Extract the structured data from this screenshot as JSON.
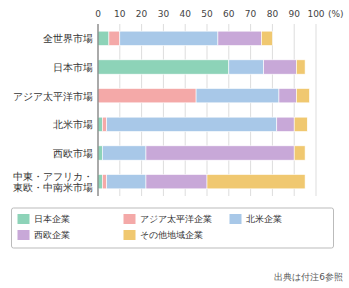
{
  "chart_data": {
    "type": "bar",
    "orientation": "horizontal",
    "stacked": true,
    "categories": [
      "全世界市場",
      "日本市場",
      "アジア太平洋市場",
      "北米市場",
      "西欧市場",
      "中東・アフリカ・\n東欧・中南米市場"
    ],
    "series": [
      {
        "name": "日本企業",
        "color": "#8dd3b8",
        "values": [
          5,
          60,
          0,
          2,
          2,
          2
        ]
      },
      {
        "name": "アジア太平洋企業",
        "color": "#f4a9a8",
        "values": [
          5,
          0,
          45,
          2,
          0,
          2
        ]
      },
      {
        "name": "北米企業",
        "color": "#a8c8e8",
        "values": [
          45,
          16,
          38,
          78,
          20,
          18
        ]
      },
      {
        "name": "西欧企業",
        "color": "#c8a8d8",
        "values": [
          20,
          15,
          8,
          8,
          68,
          28
        ]
      },
      {
        "name": "その他地域企業",
        "color": "#f0c870",
        "values": [
          5,
          4,
          6,
          6,
          5,
          45
        ]
      }
    ],
    "xlim": [
      0,
      100
    ],
    "xticks": [
      0,
      10,
      20,
      30,
      40,
      50,
      60,
      70,
      80,
      90,
      100
    ],
    "xlabel": "(%)",
    "annotations": [
      "出典は付注6参照"
    ],
    "grid": true,
    "legend": "bottom"
  }
}
